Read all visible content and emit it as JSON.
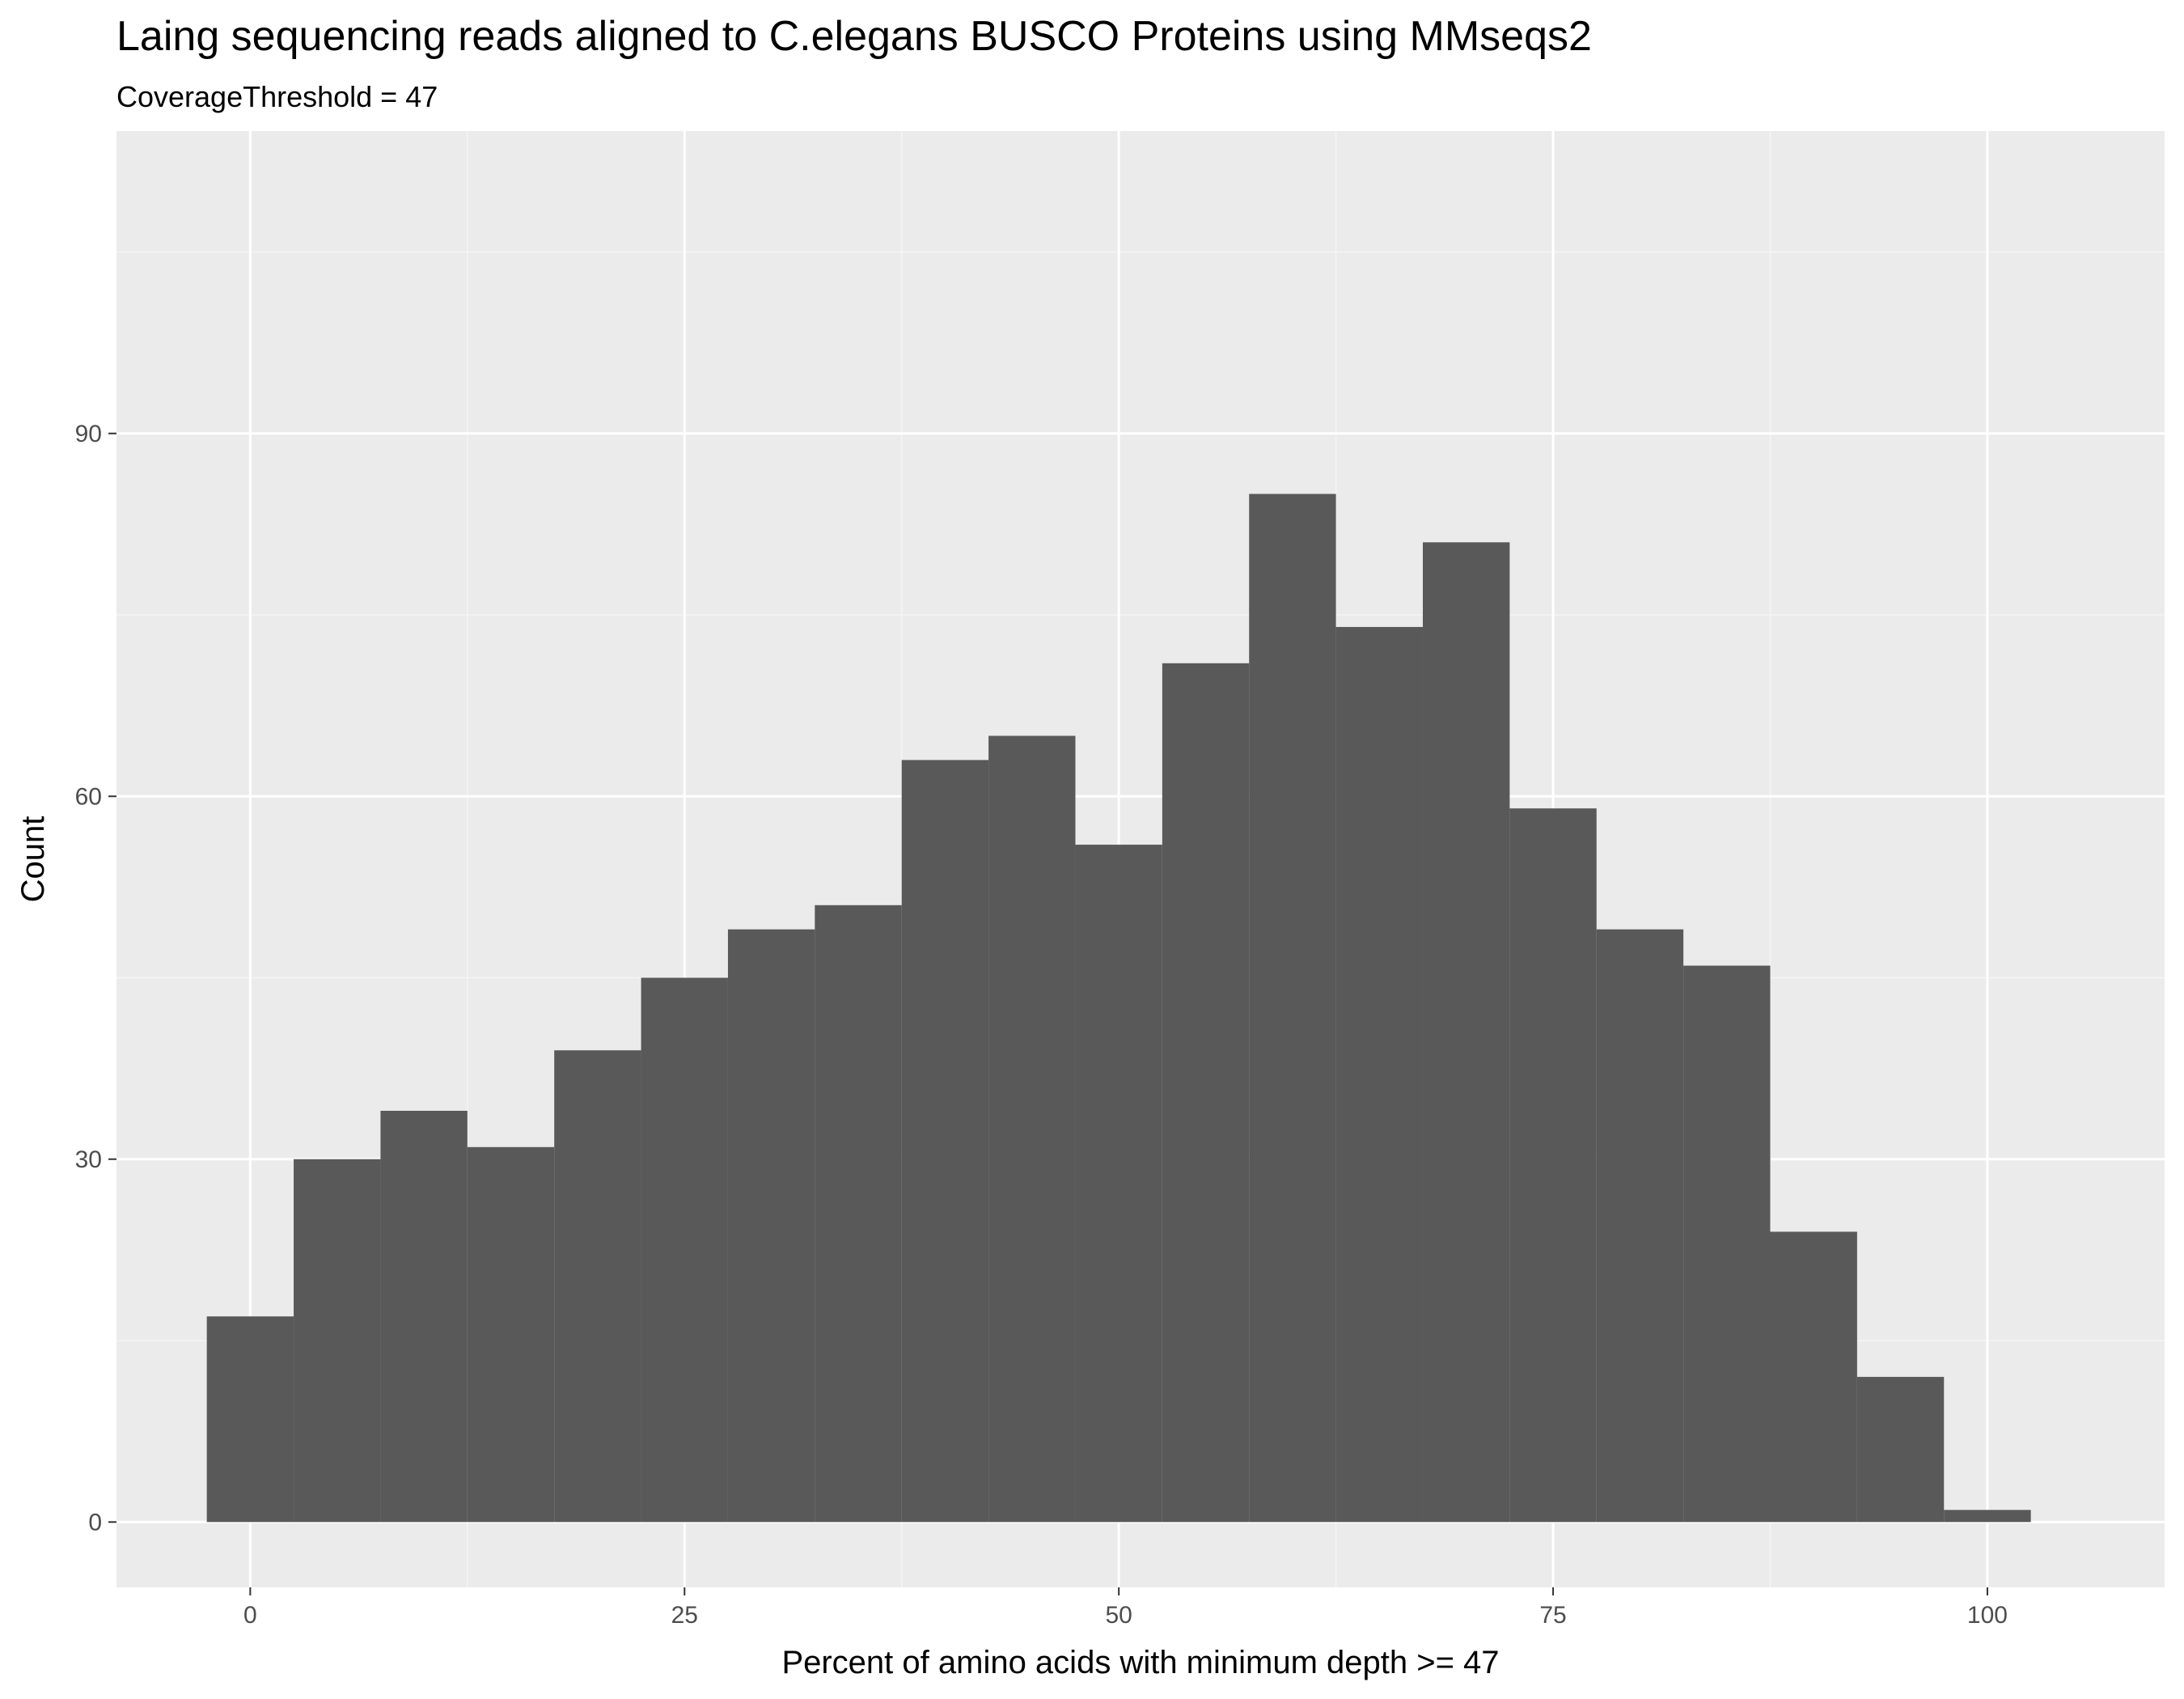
{
  "chart_data": {
    "type": "bar",
    "title": "Laing sequencing reads aligned to C.elegans BUSCO Proteins using MMseqs2",
    "subtitle": "CoverageThreshold = 47",
    "xlabel": "Percent of amino acids with minimum depth >=  47",
    "ylabel": "Count",
    "bin_width": 5,
    "bins": [
      {
        "x": 0,
        "count": 17
      },
      {
        "x": 5,
        "count": 30
      },
      {
        "x": 10,
        "count": 34
      },
      {
        "x": 15,
        "count": 31
      },
      {
        "x": 20,
        "count": 39
      },
      {
        "x": 25,
        "count": 45
      },
      {
        "x": 30,
        "count": 49
      },
      {
        "x": 35,
        "count": 51
      },
      {
        "x": 40,
        "count": 63
      },
      {
        "x": 45,
        "count": 65
      },
      {
        "x": 50,
        "count": 56
      },
      {
        "x": 55,
        "count": 71
      },
      {
        "x": 60,
        "count": 85
      },
      {
        "x": 65,
        "count": 74
      },
      {
        "x": 70,
        "count": 81
      },
      {
        "x": 75,
        "count": 59
      },
      {
        "x": 80,
        "count": 49
      },
      {
        "x": 85,
        "count": 46
      },
      {
        "x": 90,
        "count": 24
      },
      {
        "x": 95,
        "count": 12
      },
      {
        "x": 100,
        "count": 1
      }
    ],
    "xlim": [
      -7.7,
      110.2
    ],
    "ylim": [
      -5.4,
      115
    ],
    "x_ticks": [
      0,
      25,
      50,
      75,
      100
    ],
    "y_ticks": [
      0,
      30,
      60,
      90
    ],
    "grid": true,
    "colors": {
      "bar": "#595959",
      "panel": "#ebebeb",
      "grid_major": "#ffffff",
      "grid_minor": "#f5f5f5",
      "tick_label": "#4d4d4d"
    }
  }
}
